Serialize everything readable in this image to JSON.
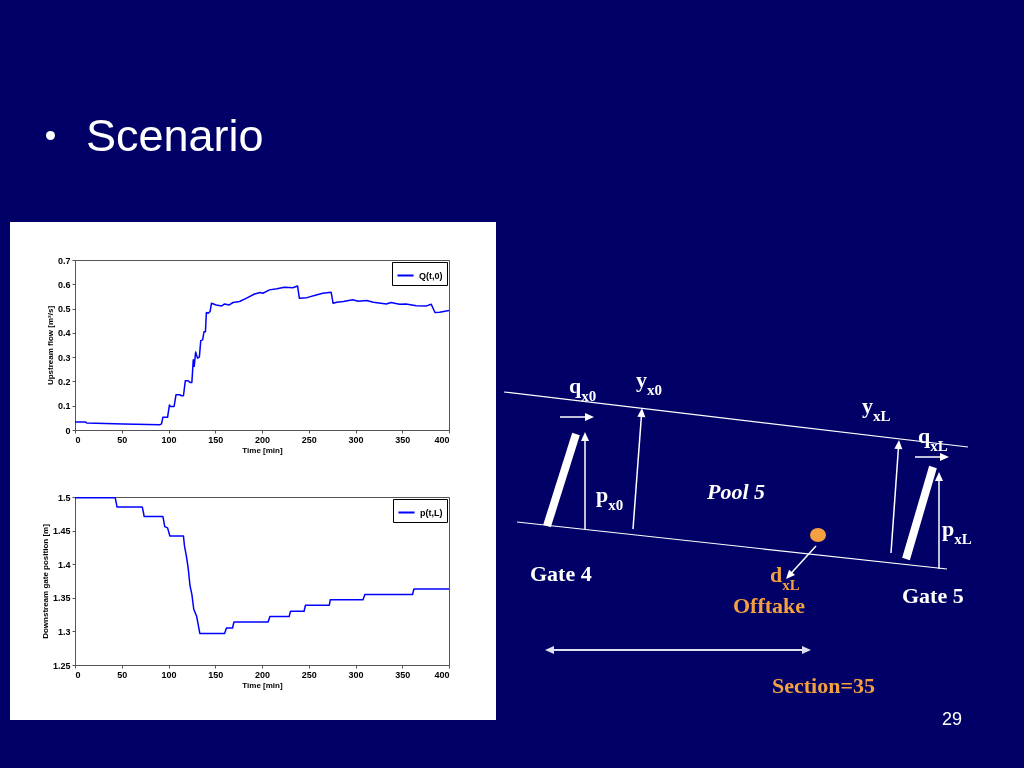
{
  "chart_data": [
    {
      "type": "line",
      "title": "Scenario",
      "xlabel": "Time [min]",
      "ylabel": "Upstream flow [m³/s]",
      "x": [
        0,
        11,
        12.5,
        52,
        91,
        92.5,
        94,
        99,
        101,
        102,
        106,
        108,
        112,
        114,
        116,
        118,
        121,
        123,
        125,
        126.5,
        127.5,
        129,
        131,
        133,
        134.5,
        136.5,
        138,
        139.5,
        140.5,
        142.5,
        144.5,
        146,
        151,
        157,
        160,
        165,
        169,
        176,
        183,
        192,
        198,
        201,
        208,
        216,
        224,
        233,
        238,
        240,
        248,
        258,
        265,
        274,
        276,
        280,
        287,
        297,
        303,
        312,
        319,
        333,
        338,
        347,
        354,
        365,
        376,
        381,
        385,
        390,
        400
      ],
      "series": [
        {
          "name": "Q(t,0)",
          "color": "#0000ff",
          "values": [
            0.033,
            0.033,
            0.029,
            0.025,
            0.022,
            0.025,
            0.052,
            0.052,
            0.103,
            0.097,
            0.097,
            0.145,
            0.145,
            0.141,
            0.141,
            0.203,
            0.203,
            0.196,
            0.196,
            0.289,
            0.262,
            0.321,
            0.296,
            0.3,
            0.368,
            0.371,
            0.405,
            0.405,
            0.484,
            0.481,
            0.488,
            0.522,
            0.515,
            0.511,
            0.519,
            0.515,
            0.525,
            0.529,
            0.542,
            0.56,
            0.566,
            0.563,
            0.577,
            0.582,
            0.588,
            0.586,
            0.593,
            0.542,
            0.545,
            0.556,
            0.563,
            0.567,
            0.522,
            0.526,
            0.529,
            0.536,
            0.53,
            0.533,
            0.526,
            0.519,
            0.525,
            0.518,
            0.519,
            0.512,
            0.511,
            0.518,
            0.484,
            0.485,
            0.492
          ]
        }
      ],
      "xlim": [
        0,
        400
      ],
      "ylim": [
        0,
        0.7
      ],
      "xticks": [
        0,
        50,
        100,
        150,
        200,
        250,
        300,
        350,
        400
      ],
      "yticks": [
        0,
        0.1,
        0.2,
        0.3,
        0.4,
        0.5,
        0.6,
        0.7
      ],
      "legend": "top right",
      "line_style": "solid"
    },
    {
      "type": "line",
      "xlabel": "Time [min]",
      "ylabel": "Downstream gate position [m]",
      "x": [
        0,
        43,
        45,
        72,
        74,
        94,
        96,
        99,
        101.5,
        116,
        117,
        119,
        121,
        123,
        125,
        127,
        130,
        133.5,
        160,
        162,
        168.5,
        170,
        206.5,
        208.5,
        229,
        230.5,
        245,
        246.5,
        272,
        273,
        308,
        310,
        361,
        362.5,
        400
      ],
      "series": [
        {
          "name": "p(t,L)",
          "color": "#0000ff",
          "values": [
            1.499,
            1.499,
            1.485,
            1.485,
            1.471,
            1.471,
            1.456,
            1.454,
            1.442,
            1.442,
            1.428,
            1.413,
            1.395,
            1.368,
            1.355,
            1.333,
            1.323,
            1.297,
            1.297,
            1.305,
            1.305,
            1.314,
            1.314,
            1.322,
            1.322,
            1.33,
            1.33,
            1.339,
            1.339,
            1.347,
            1.347,
            1.355,
            1.355,
            1.363,
            1.363
          ]
        }
      ],
      "xlim": [
        0,
        400
      ],
      "ylim": [
        1.25,
        1.5
      ],
      "xticks": [
        0,
        50,
        100,
        150,
        200,
        250,
        300,
        350,
        400
      ],
      "yticks": [
        1.25,
        1.3,
        1.35,
        1.4,
        1.45,
        1.5
      ],
      "legend": "top right",
      "line_style": "solid"
    },
    {
      "type": "other",
      "annotations": [
        "q$_{x0}$",
        "y$_{x0}$",
        "p$_{x0}$",
        "Pool 5",
        "y$_{xL}$",
        "q$_{xL}$",
        "p$_{xL}$",
        "Gate 4",
        "Gate 5",
        "d$_{xL}$",
        "Offtake",
        "Section=35",
        "29"
      ]
    }
  ]
}
